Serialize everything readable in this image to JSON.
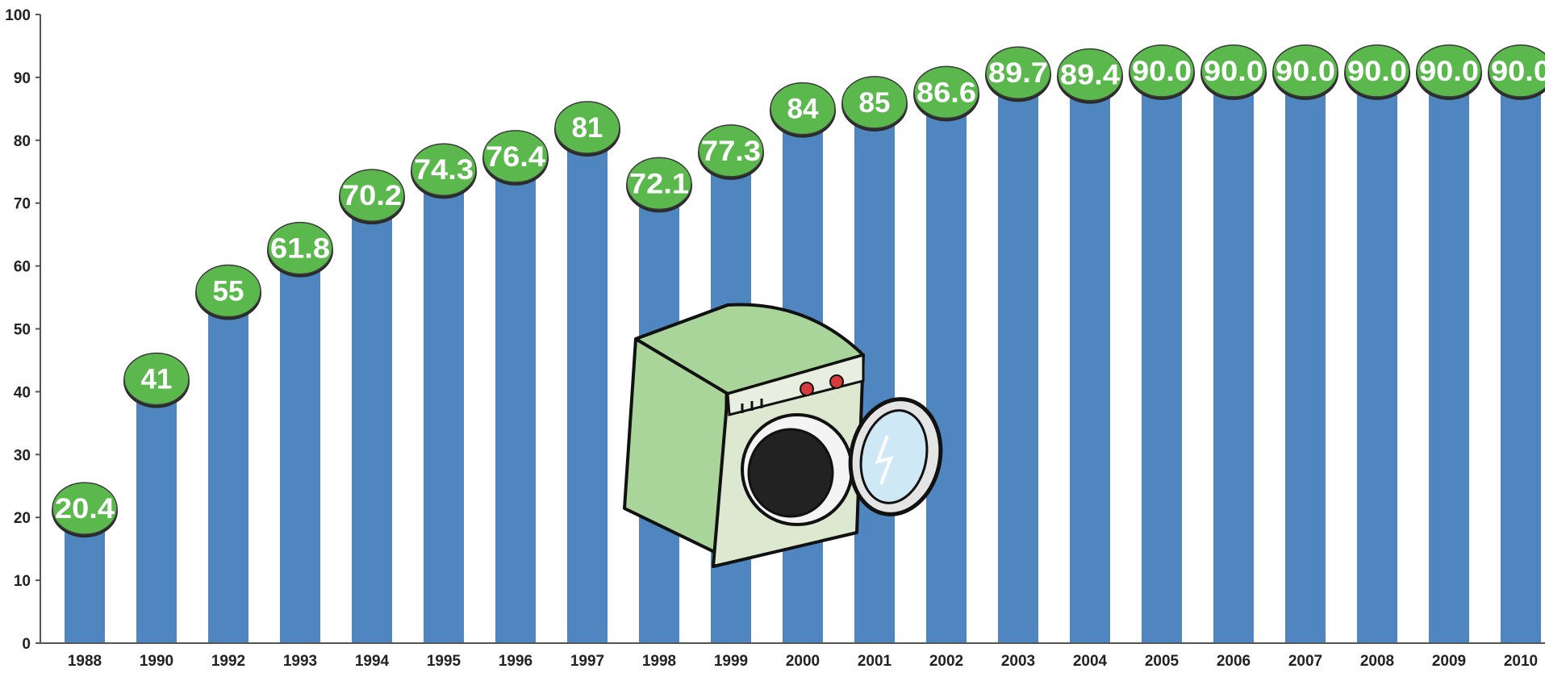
{
  "chart_data": {
    "type": "bar",
    "title": "",
    "xlabel": "",
    "ylabel": "",
    "ylim": [
      0,
      100
    ],
    "yticks": [
      0,
      10,
      20,
      30,
      40,
      50,
      60,
      70,
      80,
      90,
      100
    ],
    "grid": false,
    "legend": "none",
    "categories": [
      "1988",
      "1990",
      "1992",
      "1993",
      "1994",
      "1995",
      "1996",
      "1997",
      "1998",
      "1999",
      "2000",
      "2001",
      "2002",
      "2003",
      "2004",
      "2005",
      "2006",
      "2007",
      "2008",
      "2009",
      "2010"
    ],
    "values": [
      20.4,
      41,
      55,
      61.8,
      70.2,
      74.3,
      76.4,
      81,
      72.1,
      77.3,
      84,
      85,
      86.6,
      89.7,
      89.4,
      90.0,
      90.0,
      90.0,
      90.0,
      90.0,
      90.0
    ],
    "data_labels": [
      "20.4",
      "41",
      "55",
      "61.8",
      "70.2",
      "74.3",
      "76.4",
      "81",
      "72.1",
      "77.3",
      "84",
      "85",
      "86.6",
      "89.7",
      "89.4",
      "90.0",
      "90.0",
      "90.0",
      "90.0",
      "90.0",
      "90.0"
    ],
    "colors": {
      "bar": "#4f86c0",
      "badge_fill": "#5bb84d",
      "badge_text": "#ffffff",
      "axis": "#555555"
    },
    "decoration_icon": "washing-machine-icon"
  }
}
